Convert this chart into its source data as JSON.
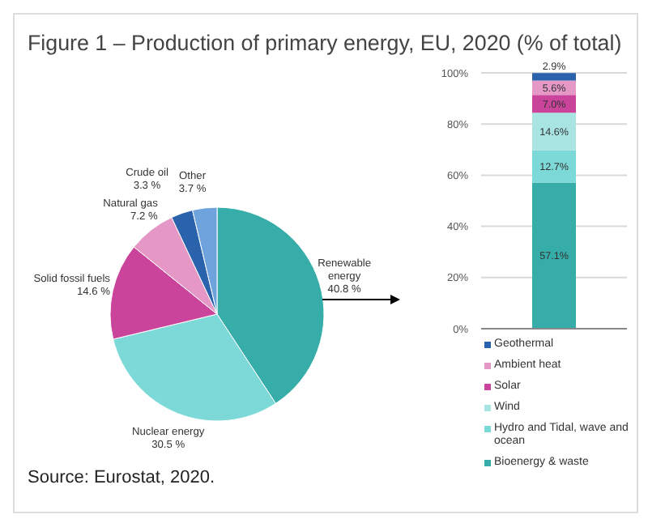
{
  "chart_data": [
    {
      "type": "pie",
      "title": "Figure 1 – Production of primary energy, EU, 2020 (% of total)",
      "categories": [
        "Renewable energy",
        "Nuclear energy",
        "Solid fossil fuels",
        "Natural gas",
        "Crude oil",
        "Other"
      ],
      "values": [
        40.8,
        30.5,
        14.6,
        7.2,
        3.3,
        3.7
      ],
      "colors": [
        "#36ada9",
        "#7dd8d8",
        "#c9449a",
        "#e597c6",
        "#2a62ab",
        "#6fa3dd"
      ],
      "value_labels": [
        "40.8 %",
        "30.5 %",
        "14.6 %",
        "7.2 %",
        "3.3 %",
        "3.7 %"
      ],
      "annotations": [
        "Source: Eurostat, 2020."
      ]
    },
    {
      "type": "bar",
      "stacked": true,
      "categories": [
        null
      ],
      "ylim": [
        0,
        100
      ],
      "yticks": [
        {
          "value": 0,
          "label": "0%"
        },
        {
          "value": 20,
          "label": "20%"
        },
        {
          "value": 40,
          "label": "40%"
        },
        {
          "value": 60,
          "label": "60%"
        },
        {
          "value": 80,
          "label": "80%"
        },
        {
          "value": 100,
          "label": "100%"
        }
      ],
      "grid": "y",
      "legend": "bottom",
      "series": [
        {
          "name": "Bioenergy & waste",
          "color": "#36ada9",
          "values": [
            57.1
          ],
          "value_labels": [
            "57.1%"
          ]
        },
        {
          "name": "Hydro and Tidal, wave and ocean",
          "color": "#7dd8d8",
          "values": [
            12.7
          ],
          "value_labels": [
            "12.7%"
          ]
        },
        {
          "name": "Wind",
          "color": "#a8e4e2",
          "values": [
            14.6
          ],
          "value_labels": [
            "14.6%"
          ]
        },
        {
          "name": "Solar",
          "color": "#c9449a",
          "values": [
            7.0
          ],
          "value_labels": [
            "7.0%"
          ]
        },
        {
          "name": "Ambient heat",
          "color": "#e597c6",
          "values": [
            5.6
          ],
          "value_labels": [
            "5.6%"
          ]
        },
        {
          "name": "Geothermal",
          "color": "#2a62ab",
          "values": [
            2.9
          ],
          "value_labels": [
            "2.9%"
          ]
        }
      ]
    }
  ]
}
